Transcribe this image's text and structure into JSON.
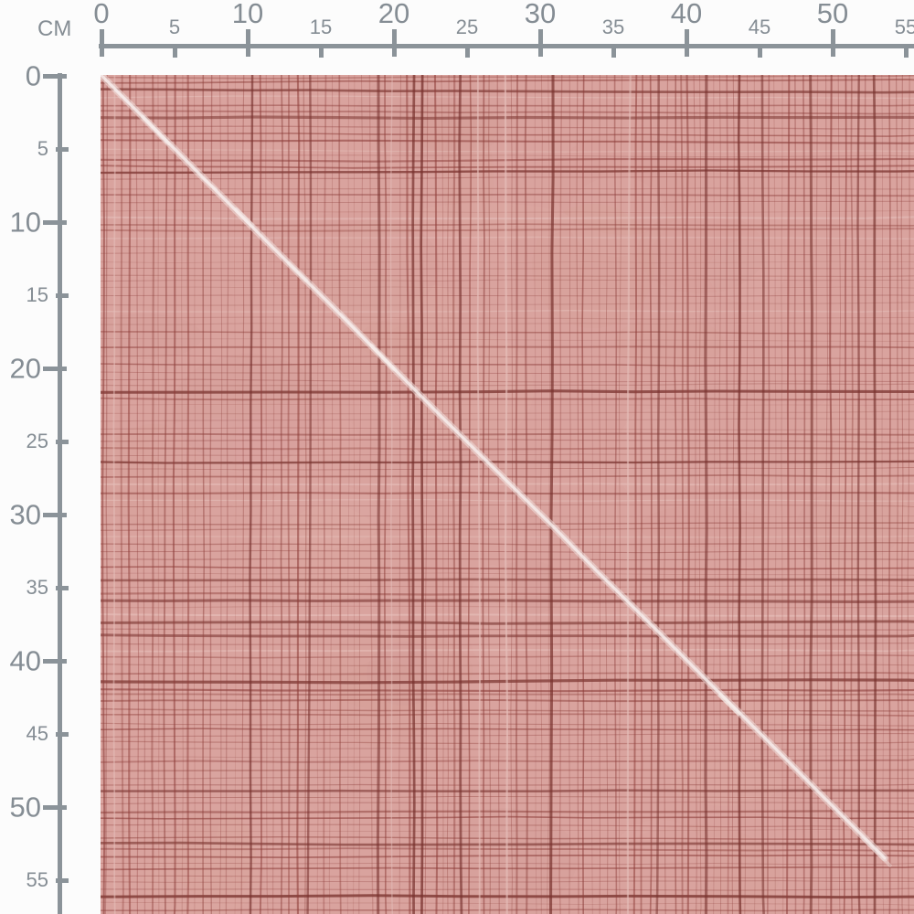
{
  "page": {
    "background_color": "#fcfcfc"
  },
  "ruler": {
    "unit_label": "CM",
    "line_color": "#8b9399",
    "text_color": "#858d94",
    "top_ticks": [
      {
        "label": "0",
        "major": true
      },
      {
        "label": "5",
        "major": false
      },
      {
        "label": "10",
        "major": true
      },
      {
        "label": "15",
        "major": false
      },
      {
        "label": "20",
        "major": true
      },
      {
        "label": "25",
        "major": false
      },
      {
        "label": "30",
        "major": true
      },
      {
        "label": "35",
        "major": false
      },
      {
        "label": "40",
        "major": true
      },
      {
        "label": "45",
        "major": false
      },
      {
        "label": "50",
        "major": true
      },
      {
        "label": "55",
        "major": false
      }
    ],
    "left_ticks": [
      {
        "label": "0",
        "major": true
      },
      {
        "label": "5",
        "major": false
      },
      {
        "label": "10",
        "major": true
      },
      {
        "label": "15",
        "major": false
      },
      {
        "label": "20",
        "major": true
      },
      {
        "label": "25",
        "major": false
      },
      {
        "label": "30",
        "major": true
      },
      {
        "label": "35",
        "major": false
      },
      {
        "label": "40",
        "major": true
      },
      {
        "label": "45",
        "major": false
      },
      {
        "label": "50",
        "major": true
      },
      {
        "label": "55",
        "major": false
      }
    ]
  },
  "fabric": {
    "base_color": "#d9a39e",
    "mottle_light_color": "#e3b2ad",
    "mottle_dark_color": "#cf9792",
    "thread_color": "#8c3c38",
    "thread_dark_color": "#77302c",
    "pale_thread_color": "#e6c0bb",
    "diagonal_color": "#f1e0dd",
    "diagonal_core_color": "#f8efed"
  }
}
